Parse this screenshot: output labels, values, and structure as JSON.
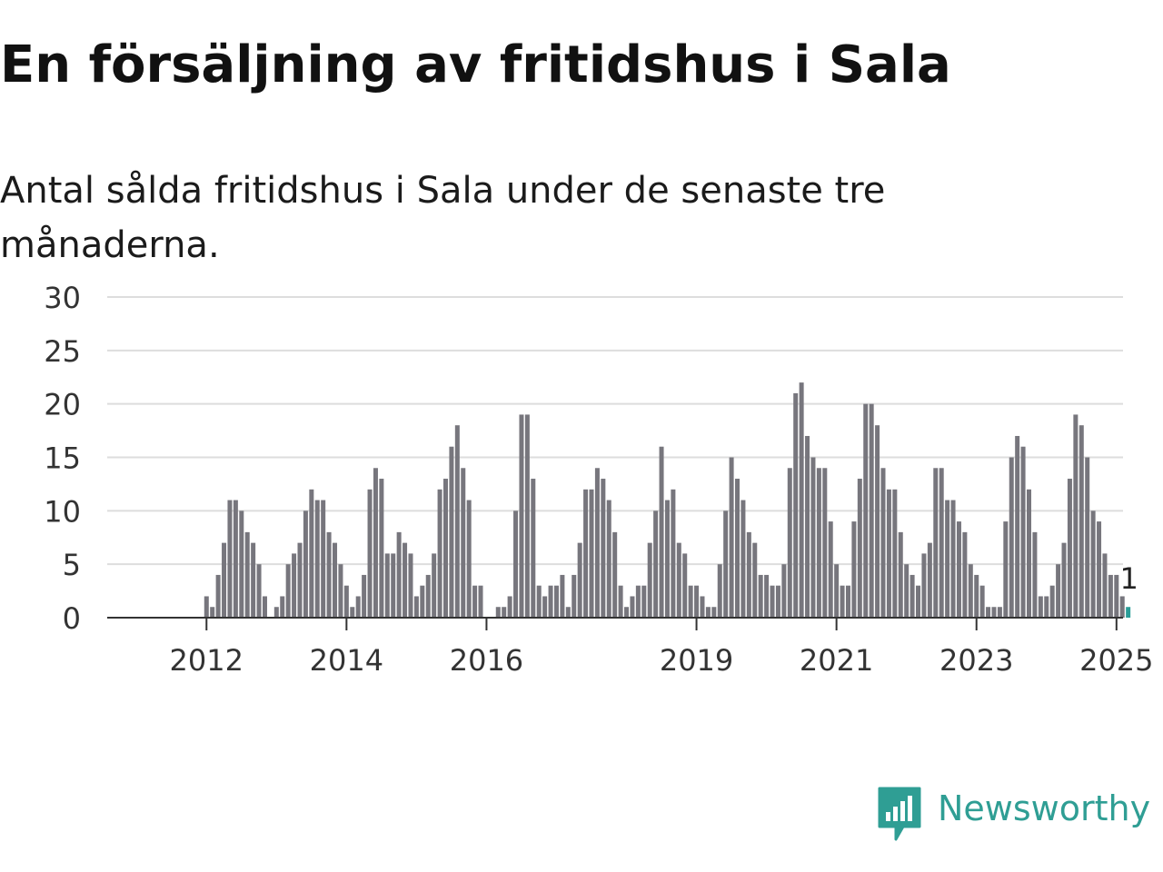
{
  "header": {
    "title": "En försäljning av fritidshus i Sala",
    "subtitle": "Antal sålda fritidshus i Sala under de senaste tre månaderna."
  },
  "brand": {
    "name": "Newsworthy",
    "logo_icon": "newsworthy-logo-icon",
    "color": "#2f9e94"
  },
  "colors": {
    "bar": "#77767d",
    "highlight": "#2a9d98",
    "grid": "#dddddd",
    "axis": "#333333"
  },
  "chart_data": {
    "type": "bar",
    "title": "En försäljning av fritidshus i Sala",
    "subtitle": "Antal sålda fritidshus i Sala under de senaste tre månaderna.",
    "xlabel": "",
    "ylabel": "",
    "ylim": [
      0,
      30
    ],
    "yticks": [
      0,
      5,
      10,
      15,
      20,
      25,
      30
    ],
    "grid": true,
    "legend": "none",
    "frequency": "monthly",
    "x_start": "2011-04",
    "x_end": "2025-02",
    "x_tick_labels": [
      "2012",
      "2014",
      "2016",
      "2019",
      "2021",
      "2023",
      "2025"
    ],
    "values": [
      0,
      0,
      0,
      0,
      0,
      0,
      0,
      0,
      0,
      2,
      1,
      4,
      7,
      11,
      11,
      10,
      8,
      7,
      5,
      2,
      0,
      1,
      2,
      5,
      6,
      7,
      10,
      12,
      11,
      11,
      8,
      7,
      5,
      3,
      1,
      2,
      4,
      12,
      14,
      13,
      6,
      6,
      8,
      7,
      6,
      2,
      3,
      4,
      6,
      12,
      13,
      16,
      18,
      14,
      11,
      3,
      3,
      0,
      0,
      1,
      1,
      2,
      10,
      19,
      19,
      13,
      3,
      2,
      3,
      3,
      4,
      1,
      4,
      7,
      12,
      12,
      14,
      13,
      11,
      8,
      3,
      1,
      2,
      3,
      3,
      7,
      10,
      16,
      11,
      12,
      7,
      6,
      3,
      3,
      2,
      1,
      1,
      5,
      10,
      15,
      13,
      11,
      8,
      7,
      4,
      4,
      3,
      3,
      5,
      14,
      21,
      22,
      17,
      15,
      14,
      14,
      9,
      5,
      3,
      3,
      9,
      13,
      20,
      20,
      18,
      14,
      12,
      12,
      8,
      5,
      4,
      3,
      6,
      7,
      14,
      14,
      11,
      11,
      9,
      8,
      5,
      4,
      3,
      1,
      1,
      1,
      9,
      15,
      17,
      16,
      12,
      8,
      2,
      2,
      3,
      5,
      7,
      13,
      19,
      18,
      15,
      10,
      9,
      6,
      4,
      4,
      2,
      1
    ],
    "highlight_last": true,
    "annotations": [
      {
        "label": "1",
        "target": "last_bar"
      }
    ]
  }
}
